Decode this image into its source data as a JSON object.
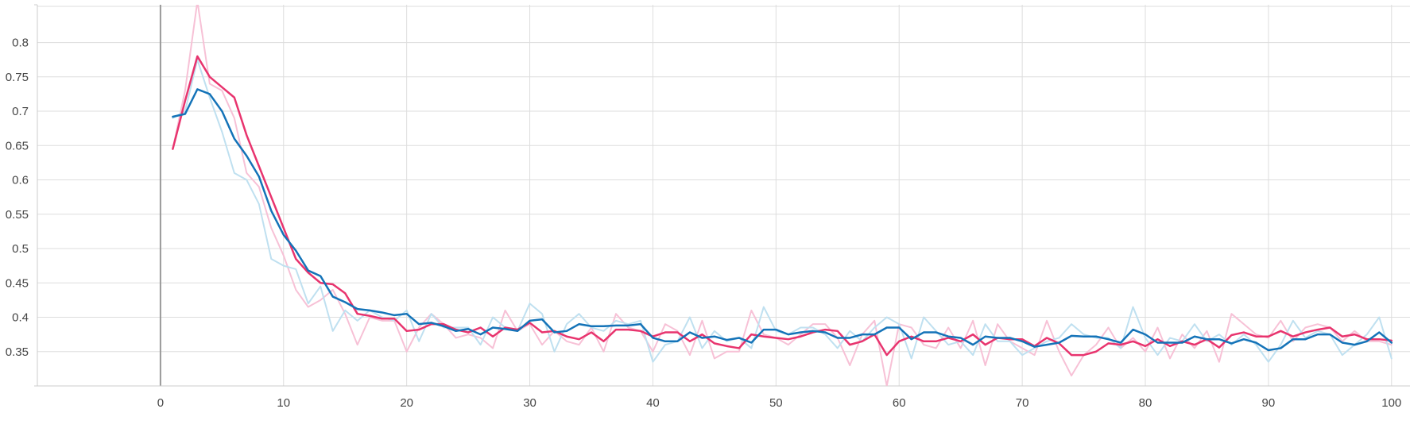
{
  "chart_data": {
    "type": "line",
    "title": "",
    "xlabel": "",
    "ylabel": "",
    "xlim": [
      -10,
      101.5
    ],
    "ylim": [
      0.3,
      0.855
    ],
    "x_ticks": [
      0,
      10,
      20,
      30,
      40,
      50,
      60,
      70,
      80,
      90,
      100
    ],
    "y_ticks": [
      0.35,
      0.4,
      0.45,
      0.5,
      0.55,
      0.6,
      0.65,
      0.7,
      0.75,
      0.8
    ],
    "x_tick_labels": [
      "0",
      "10",
      "20",
      "30",
      "40",
      "50",
      "60",
      "70",
      "80",
      "90",
      "100"
    ],
    "y_tick_labels": [
      "0.35",
      "0.4",
      "0.45",
      "0.5",
      "0.55",
      "0.6",
      "0.65",
      "0.7",
      "0.75",
      "0.8"
    ],
    "grid": true,
    "legend": "none",
    "x": [
      1,
      2,
      3,
      4,
      5,
      6,
      7,
      8,
      9,
      10,
      11,
      12,
      13,
      14,
      15,
      16,
      17,
      18,
      19,
      20,
      21,
      22,
      23,
      24,
      25,
      26,
      27,
      28,
      29,
      30,
      31,
      32,
      33,
      34,
      35,
      36,
      37,
      38,
      39,
      40,
      41,
      42,
      43,
      44,
      45,
      46,
      47,
      48,
      49,
      50,
      51,
      52,
      53,
      54,
      55,
      56,
      57,
      58,
      59,
      60,
      61,
      62,
      63,
      64,
      65,
      66,
      67,
      68,
      69,
      70,
      71,
      72,
      73,
      74,
      75,
      76,
      77,
      78,
      79,
      80,
      81,
      82,
      83,
      84,
      85,
      86,
      87,
      88,
      89,
      90,
      91,
      92,
      93,
      94,
      95,
      96,
      97,
      98,
      99,
      100
    ],
    "series": [
      {
        "role": "pink raw",
        "color": "#f7c1d6",
        "opacity": 1,
        "width": 2,
        "values": [
          0.645,
          0.73,
          0.86,
          0.74,
          0.73,
          0.69,
          0.61,
          0.59,
          0.53,
          0.49,
          0.44,
          0.415,
          0.425,
          0.44,
          0.405,
          0.36,
          0.4,
          0.395,
          0.395,
          0.35,
          0.385,
          0.405,
          0.39,
          0.37,
          0.375,
          0.37,
          0.355,
          0.41,
          0.38,
          0.39,
          0.36,
          0.38,
          0.365,
          0.36,
          0.385,
          0.35,
          0.405,
          0.385,
          0.38,
          0.35,
          0.39,
          0.38,
          0.345,
          0.395,
          0.34,
          0.35,
          0.35,
          0.41,
          0.375,
          0.37,
          0.36,
          0.375,
          0.39,
          0.39,
          0.37,
          0.33,
          0.375,
          0.395,
          0.3,
          0.39,
          0.385,
          0.36,
          0.355,
          0.385,
          0.355,
          0.395,
          0.33,
          0.39,
          0.365,
          0.355,
          0.345,
          0.395,
          0.35,
          0.315,
          0.345,
          0.36,
          0.385,
          0.355,
          0.37,
          0.35,
          0.385,
          0.34,
          0.375,
          0.355,
          0.38,
          0.335,
          0.405,
          0.39,
          0.375,
          0.37,
          0.395,
          0.365,
          0.385,
          0.39,
          0.385,
          0.365,
          0.38,
          0.365,
          0.365,
          0.36
        ]
      },
      {
        "role": "blue raw",
        "color": "#bfe0f0",
        "opacity": 1,
        "width": 2,
        "values": [
          0.69,
          0.7,
          0.775,
          0.72,
          0.67,
          0.61,
          0.6,
          0.565,
          0.485,
          0.475,
          0.47,
          0.42,
          0.445,
          0.38,
          0.41,
          0.395,
          0.41,
          0.4,
          0.395,
          0.41,
          0.365,
          0.405,
          0.385,
          0.385,
          0.385,
          0.36,
          0.4,
          0.385,
          0.38,
          0.42,
          0.405,
          0.35,
          0.39,
          0.405,
          0.385,
          0.38,
          0.395,
          0.39,
          0.395,
          0.335,
          0.36,
          0.365,
          0.4,
          0.355,
          0.38,
          0.365,
          0.37,
          0.355,
          0.415,
          0.38,
          0.375,
          0.385,
          0.385,
          0.375,
          0.355,
          0.38,
          0.365,
          0.385,
          0.4,
          0.39,
          0.34,
          0.4,
          0.38,
          0.36,
          0.365,
          0.345,
          0.39,
          0.365,
          0.365,
          0.345,
          0.355,
          0.365,
          0.37,
          0.39,
          0.375,
          0.37,
          0.37,
          0.355,
          0.415,
          0.37,
          0.345,
          0.37,
          0.365,
          0.39,
          0.365,
          0.375,
          0.36,
          0.375,
          0.36,
          0.335,
          0.36,
          0.395,
          0.37,
          0.38,
          0.375,
          0.345,
          0.36,
          0.375,
          0.4,
          0.34
        ]
      },
      {
        "role": "pink smoothed",
        "color": "#e8346e",
        "opacity": 1,
        "width": 2.5,
        "values": [
          0.645,
          0.715,
          0.78,
          0.75,
          0.735,
          0.72,
          0.665,
          0.62,
          0.575,
          0.53,
          0.485,
          0.465,
          0.45,
          0.448,
          0.435,
          0.405,
          0.402,
          0.398,
          0.398,
          0.38,
          0.382,
          0.39,
          0.39,
          0.382,
          0.378,
          0.385,
          0.372,
          0.385,
          0.382,
          0.392,
          0.378,
          0.38,
          0.372,
          0.368,
          0.378,
          0.365,
          0.382,
          0.382,
          0.38,
          0.372,
          0.378,
          0.378,
          0.365,
          0.375,
          0.362,
          0.358,
          0.355,
          0.375,
          0.372,
          0.37,
          0.368,
          0.372,
          0.378,
          0.382,
          0.38,
          0.36,
          0.365,
          0.375,
          0.345,
          0.365,
          0.372,
          0.365,
          0.365,
          0.37,
          0.365,
          0.375,
          0.36,
          0.37,
          0.368,
          0.368,
          0.358,
          0.37,
          0.362,
          0.345,
          0.345,
          0.35,
          0.362,
          0.36,
          0.365,
          0.358,
          0.368,
          0.358,
          0.365,
          0.36,
          0.368,
          0.356,
          0.374,
          0.378,
          0.372,
          0.372,
          0.38,
          0.372,
          0.378,
          0.382,
          0.385,
          0.372,
          0.375,
          0.368,
          0.368,
          0.366
        ]
      },
      {
        "role": "blue smoothed",
        "color": "#1473b8",
        "opacity": 1,
        "width": 2.5,
        "values": [
          0.692,
          0.696,
          0.732,
          0.725,
          0.7,
          0.66,
          0.635,
          0.605,
          0.555,
          0.52,
          0.497,
          0.468,
          0.46,
          0.43,
          0.422,
          0.412,
          0.41,
          0.407,
          0.403,
          0.405,
          0.39,
          0.392,
          0.387,
          0.38,
          0.383,
          0.375,
          0.385,
          0.383,
          0.38,
          0.395,
          0.397,
          0.378,
          0.38,
          0.39,
          0.387,
          0.387,
          0.388,
          0.388,
          0.39,
          0.37,
          0.365,
          0.365,
          0.378,
          0.37,
          0.372,
          0.367,
          0.37,
          0.363,
          0.382,
          0.382,
          0.375,
          0.378,
          0.38,
          0.378,
          0.37,
          0.37,
          0.375,
          0.375,
          0.385,
          0.385,
          0.368,
          0.378,
          0.378,
          0.372,
          0.37,
          0.36,
          0.372,
          0.37,
          0.37,
          0.365,
          0.357,
          0.36,
          0.363,
          0.373,
          0.372,
          0.372,
          0.368,
          0.363,
          0.382,
          0.375,
          0.363,
          0.363,
          0.363,
          0.372,
          0.368,
          0.368,
          0.362,
          0.368,
          0.363,
          0.352,
          0.355,
          0.368,
          0.368,
          0.375,
          0.375,
          0.363,
          0.36,
          0.365,
          0.378,
          0.363
        ]
      }
    ]
  }
}
